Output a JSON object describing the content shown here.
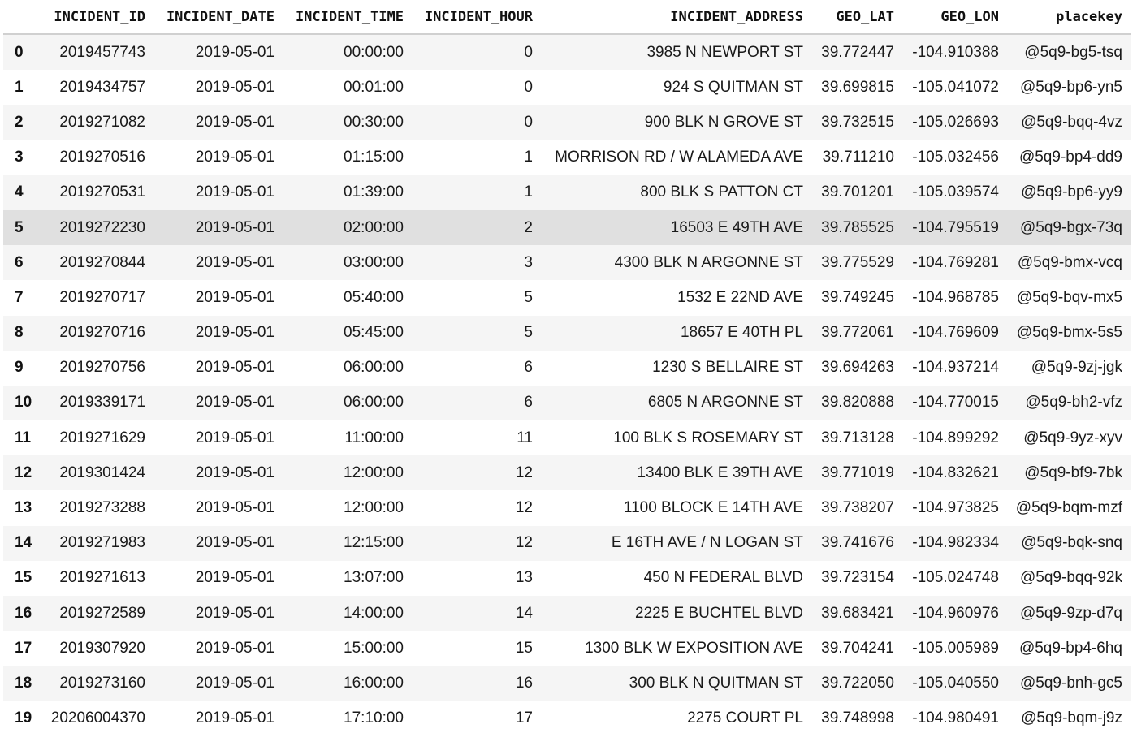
{
  "table": {
    "columns": [
      "INCIDENT_ID",
      "INCIDENT_DATE",
      "INCIDENT_TIME",
      "INCIDENT_HOUR",
      "INCIDENT_ADDRESS",
      "GEO_LAT",
      "GEO_LON",
      "placekey"
    ],
    "hovered_row": 5,
    "rows": [
      {
        "index": "0",
        "cells": [
          "2019457743",
          "2019-05-01",
          "00:00:00",
          "0",
          "3985 N NEWPORT ST",
          "39.772447",
          "-104.910388",
          "@5q9-bg5-tsq"
        ]
      },
      {
        "index": "1",
        "cells": [
          "2019434757",
          "2019-05-01",
          "00:01:00",
          "0",
          "924 S QUITMAN ST",
          "39.699815",
          "-105.041072",
          "@5q9-bp6-yn5"
        ]
      },
      {
        "index": "2",
        "cells": [
          "2019271082",
          "2019-05-01",
          "00:30:00",
          "0",
          "900 BLK N GROVE ST",
          "39.732515",
          "-105.026693",
          "@5q9-bqq-4vz"
        ]
      },
      {
        "index": "3",
        "cells": [
          "2019270516",
          "2019-05-01",
          "01:15:00",
          "1",
          "MORRISON RD / W ALAMEDA AVE",
          "39.711210",
          "-105.032456",
          "@5q9-bp4-dd9"
        ]
      },
      {
        "index": "4",
        "cells": [
          "2019270531",
          "2019-05-01",
          "01:39:00",
          "1",
          "800 BLK S PATTON CT",
          "39.701201",
          "-105.039574",
          "@5q9-bp6-yy9"
        ]
      },
      {
        "index": "5",
        "cells": [
          "2019272230",
          "2019-05-01",
          "02:00:00",
          "2",
          "16503 E 49TH AVE",
          "39.785525",
          "-104.795519",
          "@5q9-bgx-73q"
        ]
      },
      {
        "index": "6",
        "cells": [
          "2019270844",
          "2019-05-01",
          "03:00:00",
          "3",
          "4300 BLK N ARGONNE ST",
          "39.775529",
          "-104.769281",
          "@5q9-bmx-vcq"
        ]
      },
      {
        "index": "7",
        "cells": [
          "2019270717",
          "2019-05-01",
          "05:40:00",
          "5",
          "1532 E 22ND AVE",
          "39.749245",
          "-104.968785",
          "@5q9-bqv-mx5"
        ]
      },
      {
        "index": "8",
        "cells": [
          "2019270716",
          "2019-05-01",
          "05:45:00",
          "5",
          "18657 E 40TH PL",
          "39.772061",
          "-104.769609",
          "@5q9-bmx-5s5"
        ]
      },
      {
        "index": "9",
        "cells": [
          "2019270756",
          "2019-05-01",
          "06:00:00",
          "6",
          "1230 S BELLAIRE ST",
          "39.694263",
          "-104.937214",
          "@5q9-9zj-jgk"
        ]
      },
      {
        "index": "10",
        "cells": [
          "2019339171",
          "2019-05-01",
          "06:00:00",
          "6",
          "6805 N ARGONNE ST",
          "39.820888",
          "-104.770015",
          "@5q9-bh2-vfz"
        ]
      },
      {
        "index": "11",
        "cells": [
          "2019271629",
          "2019-05-01",
          "11:00:00",
          "11",
          "100 BLK S ROSEMARY ST",
          "39.713128",
          "-104.899292",
          "@5q9-9yz-xyv"
        ]
      },
      {
        "index": "12",
        "cells": [
          "2019301424",
          "2019-05-01",
          "12:00:00",
          "12",
          "13400 BLK E 39TH AVE",
          "39.771019",
          "-104.832621",
          "@5q9-bf9-7bk"
        ]
      },
      {
        "index": "13",
        "cells": [
          "2019273288",
          "2019-05-01",
          "12:00:00",
          "12",
          "1100 BLOCK E 14TH AVE",
          "39.738207",
          "-104.973825",
          "@5q9-bqm-mzf"
        ]
      },
      {
        "index": "14",
        "cells": [
          "2019271983",
          "2019-05-01",
          "12:15:00",
          "12",
          "E 16TH AVE / N LOGAN ST",
          "39.741676",
          "-104.982334",
          "@5q9-bqk-snq"
        ]
      },
      {
        "index": "15",
        "cells": [
          "2019271613",
          "2019-05-01",
          "13:07:00",
          "13",
          "450 N FEDERAL BLVD",
          "39.723154",
          "-105.024748",
          "@5q9-bqq-92k"
        ]
      },
      {
        "index": "16",
        "cells": [
          "2019272589",
          "2019-05-01",
          "14:00:00",
          "14",
          "2225 E BUCHTEL BLVD",
          "39.683421",
          "-104.960976",
          "@5q9-9zp-d7q"
        ]
      },
      {
        "index": "17",
        "cells": [
          "2019307920",
          "2019-05-01",
          "15:00:00",
          "15",
          "1300 BLK W EXPOSITION AVE",
          "39.704241",
          "-105.005989",
          "@5q9-bp4-6hq"
        ]
      },
      {
        "index": "18",
        "cells": [
          "2019273160",
          "2019-05-01",
          "16:00:00",
          "16",
          "300 BLK N QUITMAN ST",
          "39.722050",
          "-105.040550",
          "@5q9-bnh-gc5"
        ]
      },
      {
        "index": "19",
        "cells": [
          "20206004370",
          "2019-05-01",
          "17:10:00",
          "17",
          "2275 COURT PL",
          "39.748998",
          "-104.980491",
          "@5q9-bqm-j9z"
        ]
      }
    ]
  }
}
